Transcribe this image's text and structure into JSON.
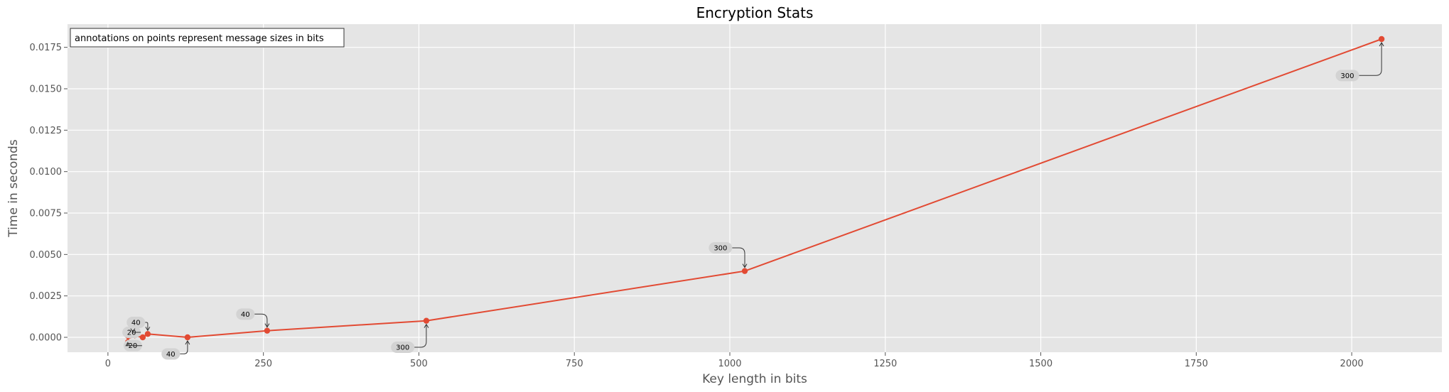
{
  "chart_data": {
    "type": "line",
    "title": "Encryption Stats",
    "xlabel": "Key length in bits",
    "ylabel": "Time in seconds",
    "xlim": [
      -65,
      2145
    ],
    "ylim": [
      -0.0009,
      0.0189
    ],
    "xticks": [
      0,
      250,
      500,
      750,
      1000,
      1250,
      1500,
      1750,
      2000
    ],
    "yticks": [
      0.0,
      0.0025,
      0.005,
      0.0075,
      0.01,
      0.0125,
      0.015,
      0.0175
    ],
    "ytick_labels": [
      "0.0000",
      "0.0025",
      "0.0050",
      "0.0075",
      "0.0100",
      "0.0125",
      "0.0150",
      "0.0175"
    ],
    "grid": true,
    "note": "annotations on points represent message sizes in bits",
    "series": [
      {
        "color": "#E24A33",
        "points": [
          {
            "x": 32,
            "y": -0.0001,
            "marker": "x"
          },
          {
            "x": 40,
            "y": 0.0001,
            "marker": "x"
          },
          {
            "x": 56,
            "y": 0.0,
            "marker": "o"
          },
          {
            "x": 64,
            "y": 0.0002,
            "marker": "o"
          },
          {
            "x": 128,
            "y": 0.0,
            "marker": "o"
          },
          {
            "x": 256,
            "y": 0.0004,
            "marker": "o"
          },
          {
            "x": 512,
            "y": 0.001,
            "marker": "o"
          },
          {
            "x": 1024,
            "y": 0.004,
            "marker": "o"
          },
          {
            "x": 2048,
            "y": 0.018,
            "marker": "o"
          }
        ]
      }
    ],
    "annotations": [
      {
        "text": "20",
        "x": 32,
        "y": -0.0001,
        "tx": 40,
        "ty": -0.0005
      },
      {
        "text": "20",
        "x": 40,
        "y": 0.0001,
        "tx": 38,
        "ty": 0.0003
      },
      {
        "text": "40",
        "x": 64,
        "y": 0.0002,
        "tx": 45,
        "ty": 0.0009
      },
      {
        "text": "40",
        "x": 128,
        "y": 0.0,
        "tx": 101,
        "ty": -0.001
      },
      {
        "text": "40",
        "x": 256,
        "y": 0.0004,
        "tx": 221,
        "ty": 0.0014
      },
      {
        "text": "300",
        "x": 512,
        "y": 0.001,
        "tx": 474,
        "ty": -0.0006
      },
      {
        "text": "300",
        "x": 1024,
        "y": 0.004,
        "tx": 985,
        "ty": 0.0054
      },
      {
        "text": "300",
        "x": 2048,
        "y": 0.018,
        "tx": 1993,
        "ty": 0.0158
      }
    ]
  }
}
